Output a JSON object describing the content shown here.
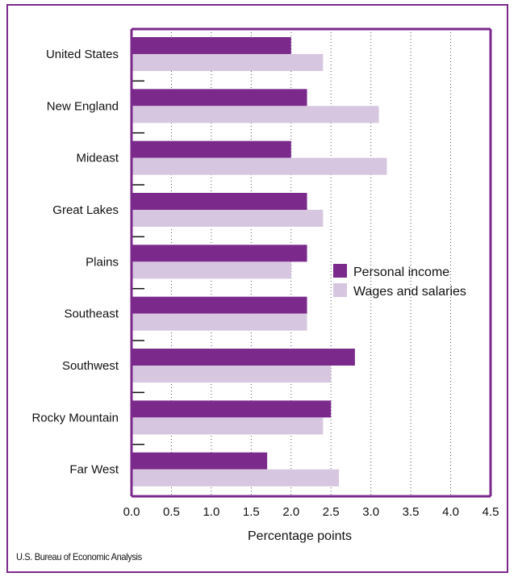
{
  "chart_data": {
    "type": "bar",
    "orientation": "horizontal",
    "categories": [
      "United States",
      "New England",
      "Mideast",
      "Great Lakes",
      "Plains",
      "Southeast",
      "Southwest",
      "Rocky Mountain",
      "Far West"
    ],
    "series": [
      {
        "name": "Personal income",
        "color": "#7b2a8c",
        "values": [
          2.0,
          2.2,
          2.0,
          2.2,
          2.2,
          2.2,
          2.8,
          2.5,
          1.7
        ]
      },
      {
        "name": "Wages and salaries",
        "color": "#d6c6e0",
        "values": [
          2.4,
          3.1,
          3.2,
          2.4,
          2.0,
          2.2,
          2.5,
          2.4,
          2.6
        ]
      }
    ],
    "xlim": [
      0,
      4.5
    ],
    "xticks": [
      "0.0",
      "0.5",
      "1.0",
      "1.5",
      "2.0",
      "2.5",
      "3.0",
      "3.5",
      "4.0",
      "4.5"
    ],
    "xlabel": "Percentage points",
    "grid": "vertical dotted",
    "legend_position": "right-middle"
  },
  "source": "U.S. Bureau of Economic Analysis",
  "colors": {
    "frame": "#7b2a8c",
    "axis": "#7b2a8c"
  }
}
